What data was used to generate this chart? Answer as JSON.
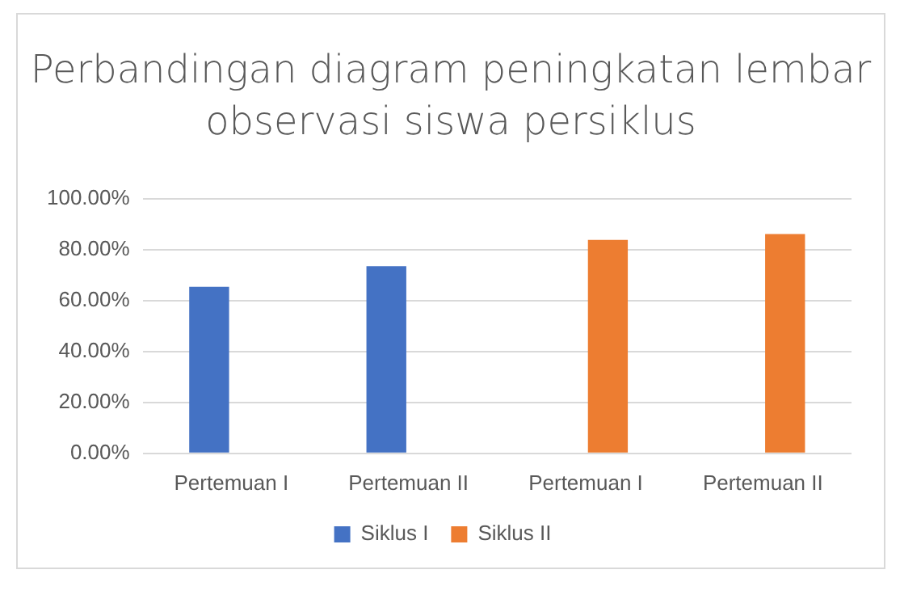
{
  "chart_data": {
    "type": "bar",
    "title": "Perbandingan diagram peningkatan lembar observasi siswa persiklus",
    "categories": [
      "Pertemuan I",
      "Pertemuan II",
      "Pertemuan I",
      "Pertemuan II"
    ],
    "series": [
      {
        "name": "Siklus I",
        "color": "#4472c4",
        "values": [
          65.4,
          73.5,
          null,
          null
        ]
      },
      {
        "name": "Siklus II",
        "color": "#ed7d31",
        "values": [
          null,
          null,
          83.8,
          86.1
        ]
      }
    ],
    "ylim": [
      0,
      100
    ],
    "yticks": [
      {
        "value": 0,
        "label": "0.00%"
      },
      {
        "value": 20,
        "label": "20.00%"
      },
      {
        "value": 40,
        "label": "40.00%"
      },
      {
        "value": 60,
        "label": "60.00%"
      },
      {
        "value": 80,
        "label": "80.00%"
      },
      {
        "value": 100,
        "label": "100.00%"
      }
    ],
    "grid": "y",
    "legend": "bottom"
  }
}
